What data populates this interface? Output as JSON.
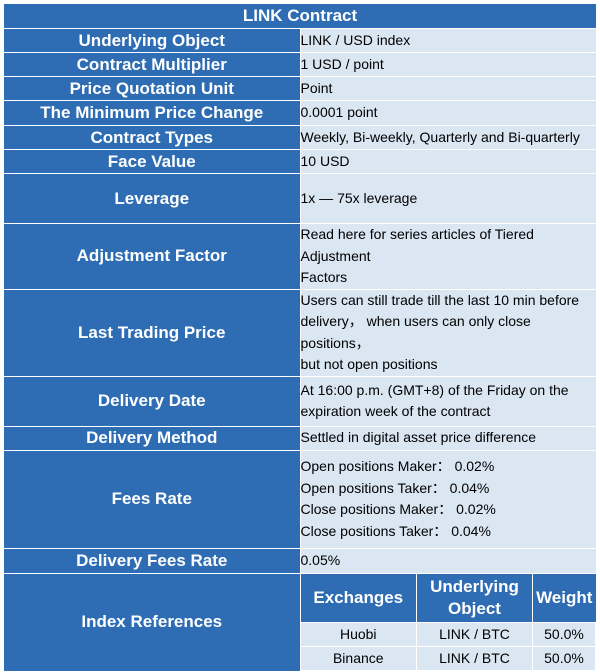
{
  "title": "LINK Contract",
  "rows": [
    {
      "label": "Underlying Object",
      "lines": [
        "LINK / USD index"
      ]
    },
    {
      "label": "Contract Multiplier",
      "lines": [
        "1 USD / point"
      ]
    },
    {
      "label": "Price Quotation Unit",
      "lines": [
        "Point"
      ]
    },
    {
      "label": "The Minimum Price Change",
      "lines": [
        "0.0001 point"
      ]
    },
    {
      "label": "Contract Types",
      "lines": [
        "Weekly, Bi-weekly, Quarterly and Bi-quarterly"
      ]
    },
    {
      "label": "Face Value",
      "lines": [
        "10 USD"
      ]
    },
    {
      "label": "Leverage",
      "lines": [
        "1x — 75x leverage"
      ]
    },
    {
      "label": "Adjustment Factor",
      "lines": [
        "Read here for series articles of Tiered Adjustment",
        "Factors"
      ]
    },
    {
      "label": "Last Trading Price",
      "lines": [
        "Users can still trade till the last 10 min before",
        "delivery， when users can only close positions，",
        "but not open positions"
      ]
    },
    {
      "label": "Delivery Date",
      "lines": [
        "At 16:00 p.m. (GMT+8) of the Friday on the",
        "expiration week of the contract"
      ]
    },
    {
      "label": "Delivery Method",
      "lines": [
        "Settled in digital asset price difference"
      ]
    },
    {
      "label": "Fees Rate",
      "lines": [
        "Open positions Maker： 0.02%",
        "Open positions Taker： 0.04%",
        "Close positions Maker： 0.02%",
        "Close positions Taker： 0.04%"
      ]
    },
    {
      "label": "Delivery Fees Rate",
      "lines": [
        "0.05%"
      ]
    }
  ],
  "index": {
    "label": "Index References",
    "headers": [
      "Exchanges",
      "Underlying\nObject",
      "Weight"
    ],
    "rows": [
      [
        "Huobi",
        "LINK / BTC",
        "50.0%"
      ],
      [
        "Binance",
        "LINK / BTC",
        "50.0%"
      ]
    ]
  }
}
